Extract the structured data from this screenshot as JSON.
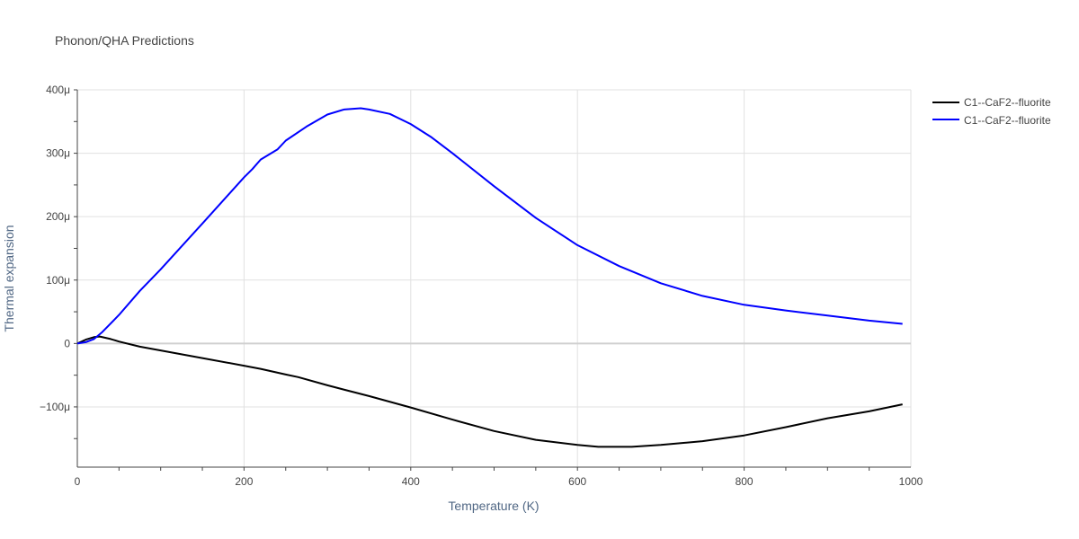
{
  "chart_data": {
    "type": "line",
    "title": "Phonon/QHA Predictions",
    "xlabel": "Temperature (K)",
    "ylabel": "Thermal expansion",
    "xlim": [
      0,
      1000
    ],
    "ylim": [
      -195,
      400
    ],
    "x_ticks": [
      0,
      200,
      400,
      600,
      800,
      1000
    ],
    "x_tick_labels": [
      "0",
      "200",
      "400",
      "600",
      "800",
      "1000"
    ],
    "y_ticks": [
      -100,
      0,
      100,
      200,
      300,
      400
    ],
    "y_tick_labels": [
      "−100μ",
      "0",
      "100μ",
      "200μ",
      "300μ",
      "400μ"
    ],
    "grid": true,
    "legend_position": "top-right",
    "units": "μ (×10⁻⁶)",
    "series": [
      {
        "name": "C1--CaF2--fluorite",
        "color": "#000000",
        "x": [
          0,
          10,
          20,
          27,
          40,
          50,
          75,
          100,
          150,
          200,
          220,
          250,
          265,
          300,
          350,
          400,
          450,
          500,
          550,
          600,
          625,
          665,
          700,
          750,
          800,
          850,
          900,
          950,
          990
        ],
        "y": [
          0,
          6,
          10,
          11,
          7,
          3,
          -5,
          -11,
          -23,
          -35,
          -40,
          -49,
          -53,
          -66,
          -83,
          -101,
          -120,
          -138,
          -152,
          -160,
          -163,
          -163,
          -160,
          -154,
          -145,
          -132,
          -118,
          -107,
          -96
        ]
      },
      {
        "name": "C1--CaF2--fluorite",
        "color": "#0000ff",
        "x": [
          0,
          10,
          20,
          30,
          50,
          75,
          100,
          150,
          200,
          210,
          220,
          240,
          250,
          275,
          300,
          320,
          340,
          350,
          375,
          400,
          425,
          450,
          500,
          550,
          600,
          650,
          700,
          750,
          800,
          850,
          900,
          950,
          990
        ],
        "y": [
          0,
          2,
          7,
          18,
          45,
          83,
          117,
          189,
          262,
          275,
          290,
          306,
          320,
          342,
          361,
          369,
          371,
          369,
          362,
          346,
          325,
          300,
          248,
          198,
          155,
          122,
          95,
          75,
          61,
          52,
          44,
          36,
          31
        ]
      }
    ]
  }
}
